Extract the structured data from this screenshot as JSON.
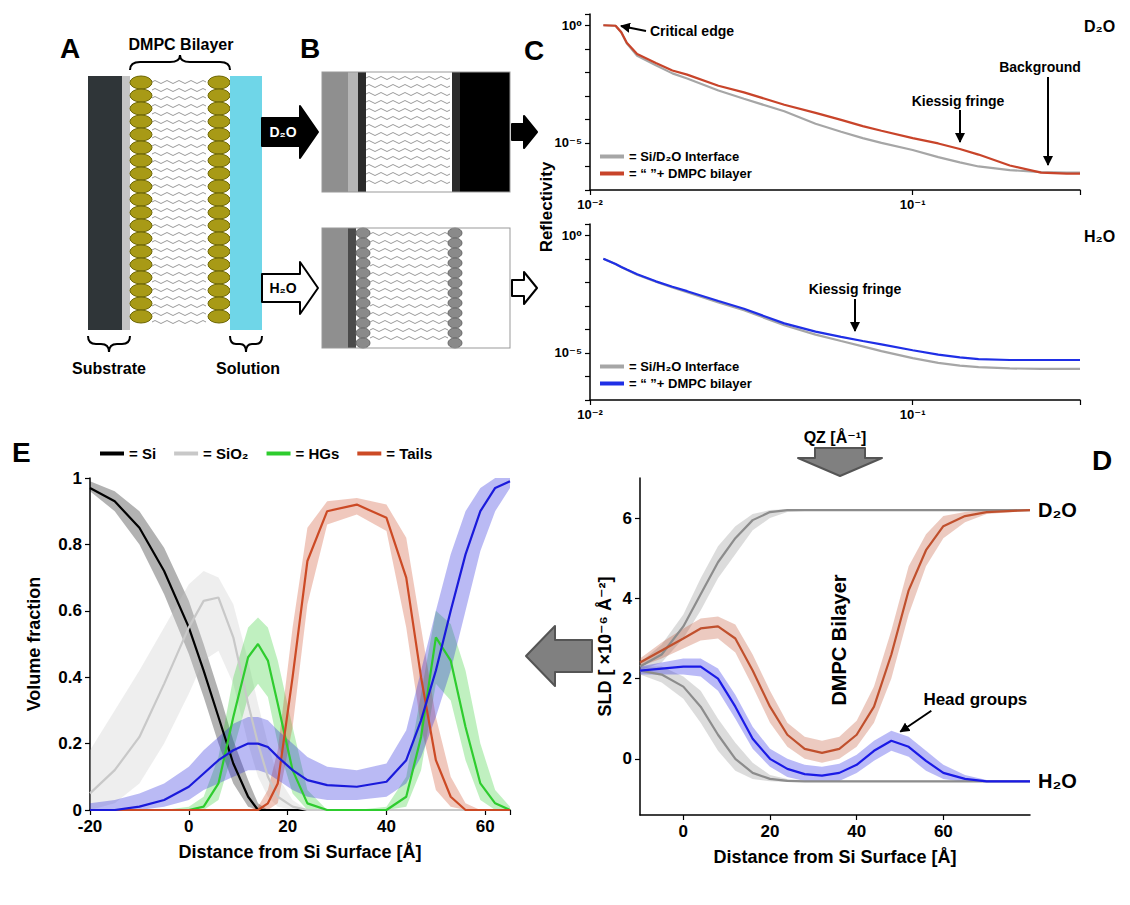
{
  "panel_letters": {
    "a": "A",
    "b": "B",
    "c": "C",
    "d": "D",
    "e": "E"
  },
  "diagram": {
    "bilayer": "DMPC Bilayer",
    "substrate": "Substrate",
    "solution": "Solution",
    "d2o_arrow": "D₂O",
    "h2o_arrow": "H₂O"
  },
  "chart_data": [
    {
      "type": "line",
      "log": true,
      "grid": false,
      "legend": "bottom-left",
      "y_label": "Reflectivity",
      "xlim": [
        0.01,
        0.33
      ],
      "xticks": [
        {
          "value": 0.01,
          "label": "10⁻²"
        },
        {
          "value": 0.1,
          "label": "10⁻¹"
        }
      ],
      "ylim": [
        1e-07,
        3
      ],
      "yticks": [
        {
          "value": 1e-05,
          "label": "10⁻⁵"
        },
        {
          "value": 1,
          "label": "10⁰"
        }
      ],
      "x": [
        0.011,
        0.012,
        0.0125,
        0.013,
        0.014,
        0.016,
        0.018,
        0.02,
        0.025,
        0.03,
        0.04,
        0.05,
        0.06,
        0.07,
        0.08,
        0.1,
        0.12,
        0.14,
        0.16,
        0.2,
        0.25,
        0.3,
        0.33
      ],
      "series": [
        {
          "name": "= Si/D₂O Interface",
          "color": "#a6a6a6",
          "values": [
            1,
            0.95,
            0.5,
            0.17,
            0.05,
            0.02,
            0.009,
            0.0055,
            0.0017,
            0.00075,
            0.00022,
            6.5e-05,
            3e-05,
            1.6e-05,
            1e-05,
            5e-06,
            2.5e-06,
            1.5e-06,
            1e-06,
            7e-07,
            5.8e-07,
            5.5e-07,
            5.5e-07
          ]
        },
        {
          "name": "= “ ”+ DMPC bilayer",
          "color": "#c8442a",
          "values": [
            1,
            0.95,
            0.5,
            0.18,
            0.06,
            0.025,
            0.012,
            0.008,
            0.0027,
            0.0014,
            0.00042,
            0.00019,
            9.5e-05,
            5.2e-05,
            3.3e-05,
            1.6e-05,
            9.5e-06,
            5.5e-06,
            3.2e-06,
            1.1e-06,
            5.5e-07,
            5e-07,
            5e-07
          ]
        }
      ],
      "annotations": {
        "critical_edge": "Critical edge",
        "kiessig_fringe": "Kiessig fringe",
        "background": "Background",
        "medium": "D₂O"
      }
    },
    {
      "type": "line",
      "log": true,
      "grid": false,
      "legend": "bottom-left",
      "x_label": "QZ [Å⁻¹]",
      "xlim": [
        0.01,
        0.33
      ],
      "xticks": [
        {
          "value": 0.01,
          "label": "10⁻²"
        },
        {
          "value": 0.1,
          "label": "10⁻¹"
        }
      ],
      "ylim": [
        1e-07,
        3
      ],
      "yticks": [
        {
          "value": 1e-05,
          "label": "10⁻⁵"
        },
        {
          "value": 1,
          "label": "10⁰"
        }
      ],
      "x": [
        0.011,
        0.012,
        0.0125,
        0.013,
        0.014,
        0.016,
        0.018,
        0.02,
        0.025,
        0.03,
        0.04,
        0.05,
        0.06,
        0.07,
        0.08,
        0.1,
        0.12,
        0.14,
        0.16,
        0.2,
        0.25,
        0.3,
        0.33
      ],
      "series": [
        {
          "name": "= Si/H₂O Interface",
          "color": "#a6a6a6",
          "values": [
            0.1,
            0.06,
            0.045,
            0.034,
            0.021,
            0.0105,
            0.006,
            0.0038,
            0.0014,
            0.00065,
            0.00015,
            6e-05,
            3.2e-05,
            1.9e-05,
            1.2e-05,
            6e-06,
            3.8e-06,
            2.9e-06,
            2.5e-06,
            2.2e-06,
            2.1e-06,
            2.1e-06,
            2.1e-06
          ]
        },
        {
          "name": "= “ ”+ DMPC bilayer",
          "color": "#1f2fe6",
          "values": [
            0.1,
            0.06,
            0.045,
            0.035,
            0.022,
            0.011,
            0.0065,
            0.0042,
            0.0016,
            0.00075,
            0.00018,
            8e-05,
            4.8e-05,
            3.2e-05,
            2.3e-05,
            1.3e-05,
            8.5e-06,
            6.5e-06,
            5.5e-06,
            5e-06,
            5e-06,
            5e-06,
            5e-06
          ]
        }
      ],
      "annotations": {
        "kiessig_fringe": "Kiessig fringe",
        "medium": "H₂O"
      }
    },
    {
      "type": "line",
      "grid": false,
      "x_label": "Distance from Si Surface [Å]",
      "y_label": "SLD [ ×10⁻⁶ Å⁻²]",
      "xlim": [
        -10,
        80
      ],
      "xticks": [
        0,
        20,
        40,
        60
      ],
      "ylim": [
        -1.4,
        7
      ],
      "yticks": [
        0,
        2,
        4,
        6
      ],
      "x": [
        -10,
        -5,
        0,
        4,
        8,
        12,
        16,
        20,
        24,
        28,
        32,
        36,
        40,
        44,
        48,
        52,
        56,
        60,
        65,
        70,
        80
      ],
      "series": [
        {
          "color": "#8c8c8c",
          "values": [
            2.3,
            2.6,
            3.3,
            4.1,
            4.9,
            5.5,
            5.95,
            6.15,
            6.2,
            6.2,
            6.2,
            6.2,
            6.2,
            6.2,
            6.2,
            6.2,
            6.2,
            6.2,
            6.2,
            6.2,
            6.2
          ],
          "lower": [
            2.2,
            2.4,
            3.0,
            3.7,
            4.5,
            5.1,
            5.7,
            6.0,
            6.15,
            6.18,
            6.18,
            6.18,
            6.18,
            6.18,
            6.18,
            6.18,
            6.18,
            6.18,
            6.18,
            6.18,
            6.18
          ],
          "upper": [
            2.4,
            2.85,
            3.6,
            4.5,
            5.3,
            5.8,
            6.1,
            6.2,
            6.22,
            6.22,
            6.22,
            6.22,
            6.22,
            6.22,
            6.22,
            6.22,
            6.22,
            6.22,
            6.22,
            6.22,
            6.22
          ]
        },
        {
          "color": "#8c8c8c",
          "values": [
            2.2,
            2.1,
            1.8,
            1.3,
            0.6,
            0,
            -0.35,
            -0.5,
            -0.55,
            -0.56,
            -0.56,
            -0.56,
            -0.56,
            -0.56,
            -0.56,
            -0.56,
            -0.56,
            -0.56,
            -0.56,
            -0.56,
            -0.56
          ],
          "lower": [
            2.1,
            1.9,
            1.5,
            0.9,
            0.2,
            -0.3,
            -0.5,
            -0.56,
            -0.58,
            -0.58,
            -0.58,
            -0.58,
            -0.58,
            -0.58,
            -0.58,
            -0.58,
            -0.58,
            -0.58,
            -0.58,
            -0.58,
            -0.58
          ],
          "upper": [
            2.3,
            2.3,
            2.05,
            1.7,
            1.0,
            0.4,
            -0.1,
            -0.4,
            -0.5,
            -0.54,
            -0.54,
            -0.54,
            -0.54,
            -0.54,
            -0.54,
            -0.54,
            -0.54,
            -0.54,
            -0.54,
            -0.54,
            -0.54
          ]
        },
        {
          "color": "#c0502d",
          "values": [
            2.4,
            2.7,
            3.0,
            3.25,
            3.3,
            3.0,
            2.2,
            1.3,
            0.6,
            0.25,
            0.15,
            0.25,
            0.6,
            1.3,
            2.6,
            4.2,
            5.2,
            5.8,
            6.05,
            6.15,
            6.2
          ],
          "lower": [
            2.3,
            2.5,
            2.75,
            2.95,
            3.0,
            2.65,
            1.8,
            0.9,
            0.3,
            0.0,
            -0.1,
            0.0,
            0.3,
            0.9,
            2.0,
            3.6,
            4.8,
            5.5,
            5.9,
            6.1,
            6.18
          ],
          "upper": [
            2.5,
            2.9,
            3.25,
            3.5,
            3.55,
            3.35,
            2.6,
            1.7,
            0.9,
            0.55,
            0.45,
            0.55,
            0.95,
            1.8,
            3.2,
            4.8,
            5.6,
            6.05,
            6.15,
            6.2,
            6.22
          ]
        },
        {
          "color": "#1a1ae6",
          "values": [
            2.2,
            2.25,
            2.3,
            2.3,
            2.0,
            1.3,
            0.5,
            0,
            -0.25,
            -0.38,
            -0.42,
            -0.35,
            -0.15,
            0.2,
            0.45,
            0.3,
            -0.05,
            -0.35,
            -0.5,
            -0.56,
            -0.56
          ],
          "lower": [
            2.1,
            2.1,
            2.1,
            2.05,
            1.7,
            1.0,
            0.25,
            -0.2,
            -0.45,
            -0.55,
            -0.58,
            -0.55,
            -0.35,
            -0.05,
            0.2,
            0.05,
            -0.3,
            -0.5,
            -0.58,
            -0.58,
            -0.58
          ],
          "upper": [
            2.3,
            2.4,
            2.5,
            2.5,
            2.25,
            1.6,
            0.8,
            0.25,
            0.0,
            -0.15,
            -0.2,
            -0.12,
            0.1,
            0.45,
            0.7,
            0.55,
            0.2,
            -0.15,
            -0.4,
            -0.53,
            -0.54
          ]
        }
      ],
      "annotations": {
        "bilayer": "DMPC Bilayer",
        "head_groups": "Head groups",
        "d2o": "D₂O",
        "h2o": "H₂O"
      }
    },
    {
      "type": "line",
      "grid": false,
      "legend": "top",
      "x_label": "Distance from Si Surface [Å]",
      "y_label": "Volume fraction",
      "xlim": [
        -20,
        65
      ],
      "xticks": [
        -20,
        0,
        20,
        40,
        60
      ],
      "ylim": [
        0,
        1
      ],
      "yticks": [
        0,
        0.2,
        0.4,
        0.6,
        0.8,
        1
      ],
      "x": [
        -20,
        -15,
        -10,
        -5,
        0,
        3,
        6,
        9,
        12,
        14,
        16,
        18,
        21,
        24,
        28,
        34,
        40,
        44,
        47,
        50,
        53,
        56,
        59,
        62,
        65
      ],
      "series": [
        {
          "name": "= Si",
          "color": "#000000",
          "values": [
            0.97,
            0.93,
            0.85,
            0.72,
            0.55,
            0.42,
            0.28,
            0.14,
            0.04,
            0,
            0,
            0,
            0,
            0,
            0,
            0,
            0,
            0,
            0,
            0,
            0,
            0,
            0,
            0,
            0
          ],
          "lower": [
            0.96,
            0.9,
            0.8,
            0.65,
            0.47,
            0.34,
            0.2,
            0.08,
            0.01,
            0,
            0,
            0,
            0,
            0,
            0,
            0,
            0,
            0,
            0,
            0,
            0,
            0,
            0,
            0,
            0
          ],
          "upper": [
            0.99,
            0.96,
            0.9,
            0.79,
            0.63,
            0.5,
            0.36,
            0.21,
            0.09,
            0.02,
            0,
            0,
            0,
            0,
            0,
            0,
            0,
            0,
            0,
            0,
            0,
            0,
            0,
            0,
            0
          ]
        },
        {
          "name": "= SiO₂",
          "color": "#c8c8c8",
          "values": [
            0.05,
            0.12,
            0.22,
            0.38,
            0.55,
            0.63,
            0.64,
            0.52,
            0.32,
            0.2,
            0.1,
            0.04,
            0.01,
            0,
            0,
            0,
            0,
            0,
            0,
            0,
            0,
            0,
            0,
            0,
            0
          ],
          "lower": [
            0,
            0.02,
            0.08,
            0.2,
            0.35,
            0.45,
            0.48,
            0.38,
            0.2,
            0.1,
            0.04,
            0.01,
            0,
            0,
            0,
            0,
            0,
            0,
            0,
            0,
            0,
            0,
            0,
            0,
            0
          ],
          "upper": [
            0.18,
            0.3,
            0.42,
            0.55,
            0.68,
            0.72,
            0.7,
            0.62,
            0.45,
            0.32,
            0.2,
            0.1,
            0.03,
            0,
            0,
            0,
            0,
            0,
            0,
            0,
            0,
            0,
            0,
            0,
            0
          ]
        },
        {
          "name": "= HGs",
          "color": "#2ecc2e",
          "values": [
            0,
            0,
            0,
            0,
            0,
            0.01,
            0.08,
            0.28,
            0.46,
            0.5,
            0.45,
            0.32,
            0.12,
            0.02,
            0,
            0,
            0,
            0.04,
            0.22,
            0.52,
            0.45,
            0.25,
            0.08,
            0.02,
            0
          ],
          "lower": [
            0,
            0,
            0,
            0,
            0,
            0,
            0.03,
            0.18,
            0.34,
            0.38,
            0.34,
            0.2,
            0.05,
            0,
            0,
            0,
            0,
            0.01,
            0.12,
            0.38,
            0.33,
            0.15,
            0.03,
            0,
            0
          ],
          "upper": [
            0,
            0,
            0,
            0,
            0.01,
            0.04,
            0.16,
            0.4,
            0.55,
            0.58,
            0.55,
            0.45,
            0.25,
            0.06,
            0,
            0,
            0.01,
            0.1,
            0.35,
            0.6,
            0.56,
            0.42,
            0.2,
            0.06,
            0.01
          ]
        },
        {
          "name": "= Tails",
          "color": "#cc4a25",
          "values": [
            0,
            0,
            0,
            0,
            0,
            0,
            0,
            0,
            0,
            0,
            0.02,
            0.08,
            0.4,
            0.75,
            0.9,
            0.92,
            0.88,
            0.7,
            0.4,
            0.15,
            0.04,
            0,
            0,
            0,
            0
          ],
          "lower": [
            0,
            0,
            0,
            0,
            0,
            0,
            0,
            0,
            0,
            0,
            0,
            0.02,
            0.25,
            0.62,
            0.86,
            0.89,
            0.84,
            0.55,
            0.25,
            0.06,
            0.01,
            0,
            0,
            0,
            0
          ],
          "upper": [
            0,
            0,
            0,
            0,
            0,
            0,
            0,
            0,
            0,
            0.01,
            0.06,
            0.18,
            0.55,
            0.85,
            0.93,
            0.94,
            0.92,
            0.82,
            0.55,
            0.28,
            0.1,
            0.02,
            0,
            0,
            0
          ]
        },
        {
          "color": "#1a1adb",
          "values": [
            0,
            0,
            0.01,
            0.03,
            0.07,
            0.11,
            0.15,
            0.18,
            0.2,
            0.2,
            0.19,
            0.16,
            0.12,
            0.09,
            0.075,
            0.07,
            0.085,
            0.15,
            0.27,
            0.42,
            0.6,
            0.77,
            0.9,
            0.97,
            0.99
          ],
          "lower": [
            0,
            0,
            0,
            0.01,
            0.03,
            0.06,
            0.08,
            0.1,
            0.12,
            0.12,
            0.11,
            0.09,
            0.06,
            0.04,
            0.03,
            0.03,
            0.04,
            0.08,
            0.16,
            0.28,
            0.42,
            0.6,
            0.78,
            0.9,
            0.97
          ],
          "upper": [
            0.02,
            0.03,
            0.05,
            0.08,
            0.13,
            0.18,
            0.22,
            0.26,
            0.28,
            0.28,
            0.27,
            0.24,
            0.2,
            0.16,
            0.13,
            0.12,
            0.14,
            0.24,
            0.42,
            0.6,
            0.77,
            0.9,
            0.97,
            1,
            1
          ]
        }
      ]
    }
  ]
}
